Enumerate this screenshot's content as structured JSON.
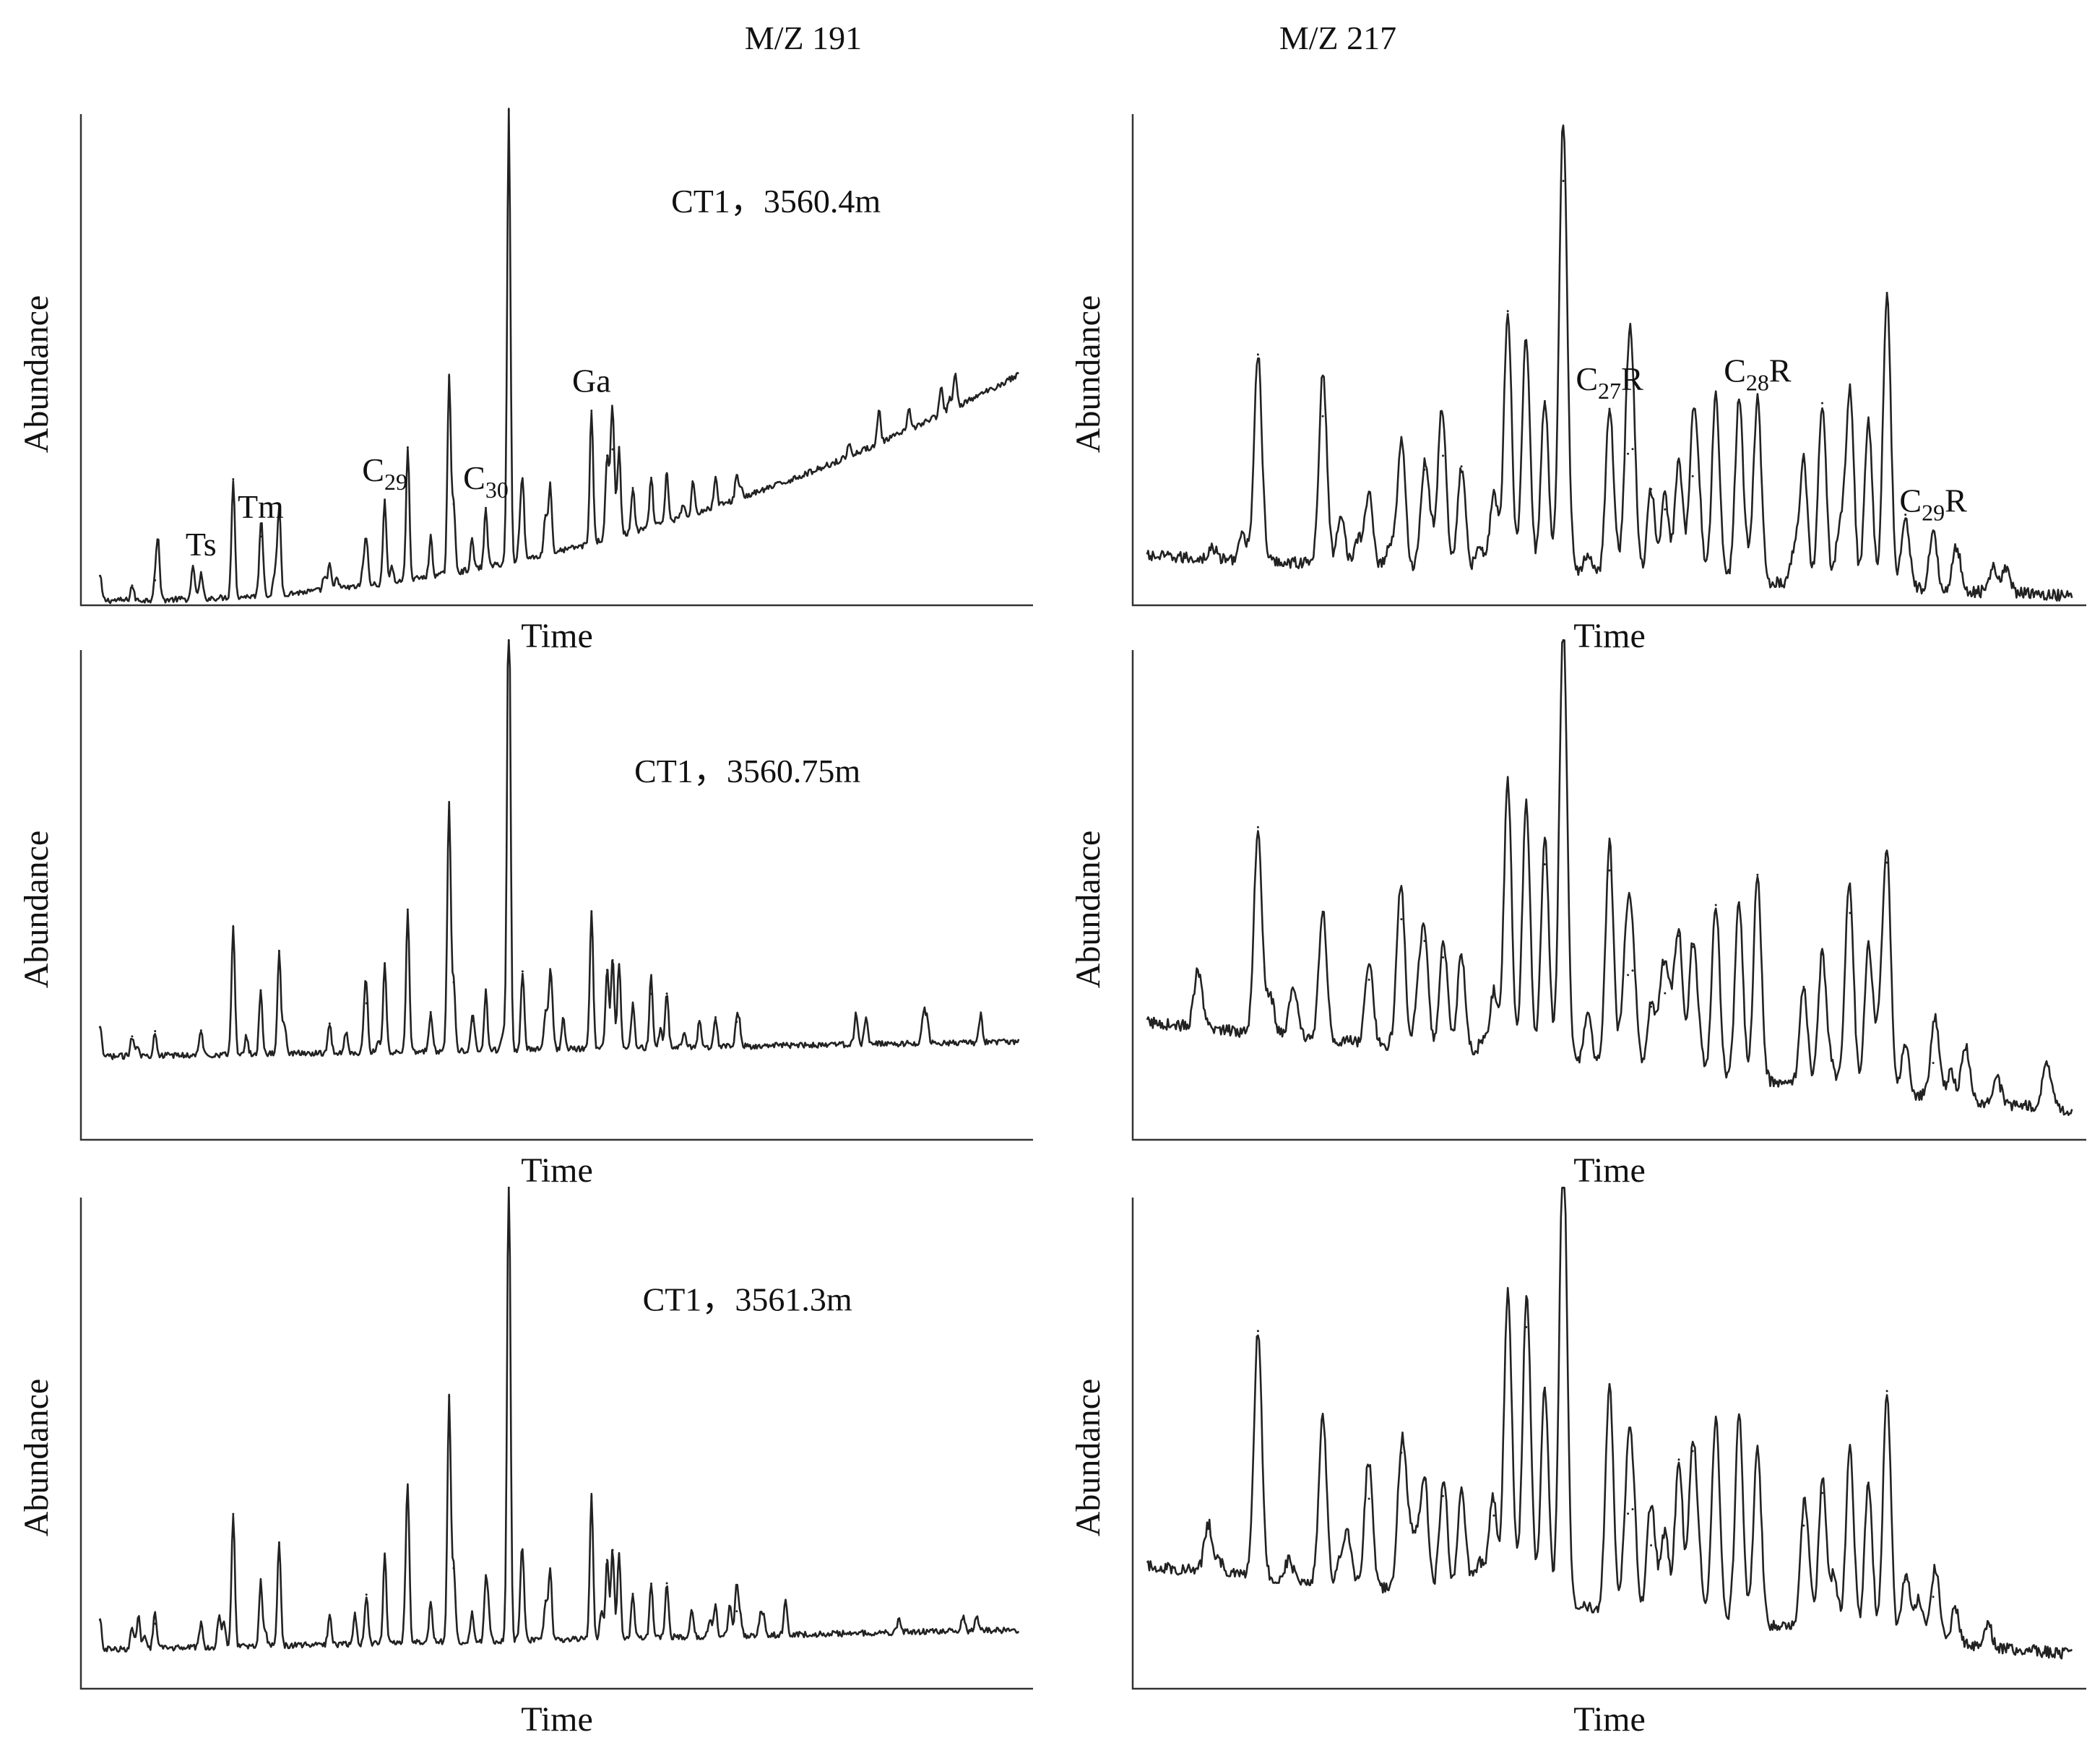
{
  "columns": [
    {
      "id": "mz191",
      "title": "M/Z 191"
    },
    {
      "id": "mz217",
      "title": "M/Z 217"
    }
  ],
  "chart_data": [
    {
      "type": "line",
      "column": "mz191",
      "row": 0,
      "title": "",
      "xlabel": "Time",
      "ylabel": "Abundance",
      "sample_label": "CT1，3560.4m",
      "baseline": {
        "start": 0.01,
        "end": 0.47,
        "curve": 2.2
      },
      "x": [
        0.0,
        0.035,
        0.06,
        0.11,
        0.145,
        0.175,
        0.195,
        0.25,
        0.29,
        0.31,
        0.335,
        0.36,
        0.38,
        0.385,
        0.405,
        0.42,
        0.445,
        0.46,
        0.485,
        0.49,
        0.535,
        0.552,
        0.558,
        0.565,
        0.58,
        0.6,
        0.617,
        0.67,
        0.693
      ],
      "y": [
        0.05,
        0.03,
        0.04,
        0.05,
        0.24,
        0.12,
        0.18,
        0.05,
        0.09,
        0.17,
        0.27,
        0.08,
        0.4,
        0.14,
        0.06,
        0.12,
        0.92,
        0.15,
        0.08,
        0.14,
        0.27,
        0.17,
        0.18,
        0.18,
        0.09,
        0.1,
        0.1,
        0.06,
        0.05
      ],
      "peak_labels": [
        {
          "main": "Ts",
          "sub": "",
          "x": 0.108
        },
        {
          "main": "Tm",
          "sub": "",
          "x": 0.18
        },
        {
          "main": "C",
          "sub": "29",
          "x": 0.32
        },
        {
          "main": "C",
          "sub": "30",
          "x": 0.435
        },
        {
          "main": "Ga",
          "sub": "",
          "x": 0.553
        }
      ]
    },
    {
      "type": "line",
      "column": "mz217",
      "row": 0,
      "title": "",
      "xlabel": "Time",
      "ylabel": "Abundance",
      "sample_label": "",
      "baseline": {
        "start": 0.1,
        "end": 0.02,
        "curve": 1.0
      },
      "x": [
        0.12,
        0.19,
        0.24,
        0.275,
        0.3,
        0.32,
        0.34,
        0.375,
        0.39,
        0.41,
        0.43,
        0.45,
        0.5,
        0.52,
        0.525,
        0.545,
        0.56,
        0.575,
        0.59,
        0.615,
        0.64,
        0.66,
        0.71,
        0.73,
        0.76,
        0.78,
        0.8,
        0.82,
        0.85
      ],
      "y": [
        0.42,
        0.3,
        0.15,
        0.26,
        0.2,
        0.23,
        0.21,
        0.16,
        0.53,
        0.47,
        0.35,
        0.8,
        0.34,
        0.25,
        0.26,
        0.18,
        0.14,
        0.24,
        0.21,
        0.38,
        0.37,
        0.37,
        0.25,
        0.37,
        0.4,
        0.34,
        0.6,
        0.15,
        0.12
      ],
      "peak_labels": [
        {
          "main": "C",
          "sub": "27",
          "x": 0.49
        },
        {
          "main": "C",
          "sub": "28",
          "x": 0.66
        },
        {
          "main": "C",
          "sub": "29",
          "x": 0.85
        }
      ]
    },
    {
      "type": "line",
      "column": "mz191",
      "row": 1,
      "title": "",
      "xlabel": "Time",
      "ylabel": "Abundance",
      "sample_label": "CT1，3560.75m",
      "baseline": {
        "start": 0.17,
        "end": 0.2,
        "curve": 1.0
      },
      "x": [
        0.0,
        0.035,
        0.06,
        0.11,
        0.145,
        0.175,
        0.195,
        0.25,
        0.29,
        0.31,
        0.335,
        0.36,
        0.38,
        0.385,
        0.405,
        0.42,
        0.445,
        0.46,
        0.485,
        0.49,
        0.535,
        0.552,
        0.558,
        0.565,
        0.58,
        0.6,
        0.617,
        0.67,
        0.693
      ],
      "y": [
        0.06,
        0.04,
        0.05,
        0.05,
        0.26,
        0.13,
        0.21,
        0.06,
        0.1,
        0.18,
        0.29,
        0.08,
        0.49,
        0.14,
        0.06,
        0.12,
        0.99,
        0.16,
        0.08,
        0.14,
        0.28,
        0.16,
        0.18,
        0.17,
        0.09,
        0.11,
        0.11,
        0.06,
        0.05
      ],
      "peak_labels": []
    },
    {
      "type": "line",
      "column": "mz217",
      "row": 1,
      "title": "",
      "xlabel": "Time",
      "ylabel": "Abundance",
      "sample_label": "",
      "baseline": {
        "start": 0.24,
        "end": 0.06,
        "curve": 1.0
      },
      "x": [
        0.12,
        0.19,
        0.24,
        0.275,
        0.3,
        0.32,
        0.34,
        0.375,
        0.39,
        0.41,
        0.43,
        0.45,
        0.5,
        0.52,
        0.525,
        0.545,
        0.56,
        0.575,
        0.59,
        0.615,
        0.64,
        0.66,
        0.71,
        0.73,
        0.76,
        0.78,
        0.8,
        0.82,
        0.85
      ],
      "y": [
        0.42,
        0.26,
        0.13,
        0.26,
        0.22,
        0.19,
        0.2,
        0.13,
        0.56,
        0.52,
        0.4,
        0.9,
        0.4,
        0.19,
        0.2,
        0.13,
        0.16,
        0.28,
        0.26,
        0.35,
        0.36,
        0.42,
        0.2,
        0.27,
        0.36,
        0.3,
        0.47,
        0.1,
        0.07
      ],
      "peak_labels": []
    },
    {
      "type": "line",
      "column": "mz191",
      "row": 2,
      "title": "",
      "xlabel": "Time",
      "ylabel": "Abundance",
      "sample_label": "CT1，3561.3m",
      "baseline": {
        "start": 0.08,
        "end": 0.12,
        "curve": 1.0
      },
      "x": [
        0.0,
        0.035,
        0.06,
        0.11,
        0.145,
        0.175,
        0.195,
        0.25,
        0.29,
        0.31,
        0.335,
        0.36,
        0.38,
        0.385,
        0.405,
        0.42,
        0.445,
        0.46,
        0.485,
        0.49,
        0.535,
        0.552,
        0.558,
        0.565,
        0.58,
        0.6,
        0.617,
        0.67,
        0.693
      ],
      "y": [
        0.06,
        0.04,
        0.05,
        0.05,
        0.27,
        0.13,
        0.21,
        0.06,
        0.1,
        0.18,
        0.3,
        0.08,
        0.5,
        0.15,
        0.06,
        0.12,
        1.0,
        0.17,
        0.08,
        0.14,
        0.29,
        0.16,
        0.18,
        0.17,
        0.09,
        0.11,
        0.11,
        0.06,
        0.05
      ],
      "peak_labels": []
    },
    {
      "type": "line",
      "column": "mz217",
      "row": 2,
      "title": "",
      "xlabel": "Time",
      "ylabel": "Abundance",
      "sample_label": "",
      "baseline": {
        "start": 0.25,
        "end": 0.07,
        "curve": 1.0
      },
      "x": [
        0.12,
        0.19,
        0.24,
        0.275,
        0.3,
        0.32,
        0.34,
        0.375,
        0.39,
        0.41,
        0.43,
        0.45,
        0.5,
        0.52,
        0.525,
        0.545,
        0.56,
        0.575,
        0.59,
        0.615,
        0.64,
        0.66,
        0.71,
        0.73,
        0.76,
        0.78,
        0.8,
        0.82,
        0.85
      ],
      "y": [
        0.5,
        0.34,
        0.18,
        0.28,
        0.23,
        0.2,
        0.21,
        0.17,
        0.62,
        0.56,
        0.44,
        0.95,
        0.46,
        0.2,
        0.21,
        0.14,
        0.17,
        0.32,
        0.34,
        0.41,
        0.42,
        0.36,
        0.21,
        0.28,
        0.38,
        0.31,
        0.5,
        0.12,
        0.09
      ],
      "peak_labels": []
    }
  ]
}
